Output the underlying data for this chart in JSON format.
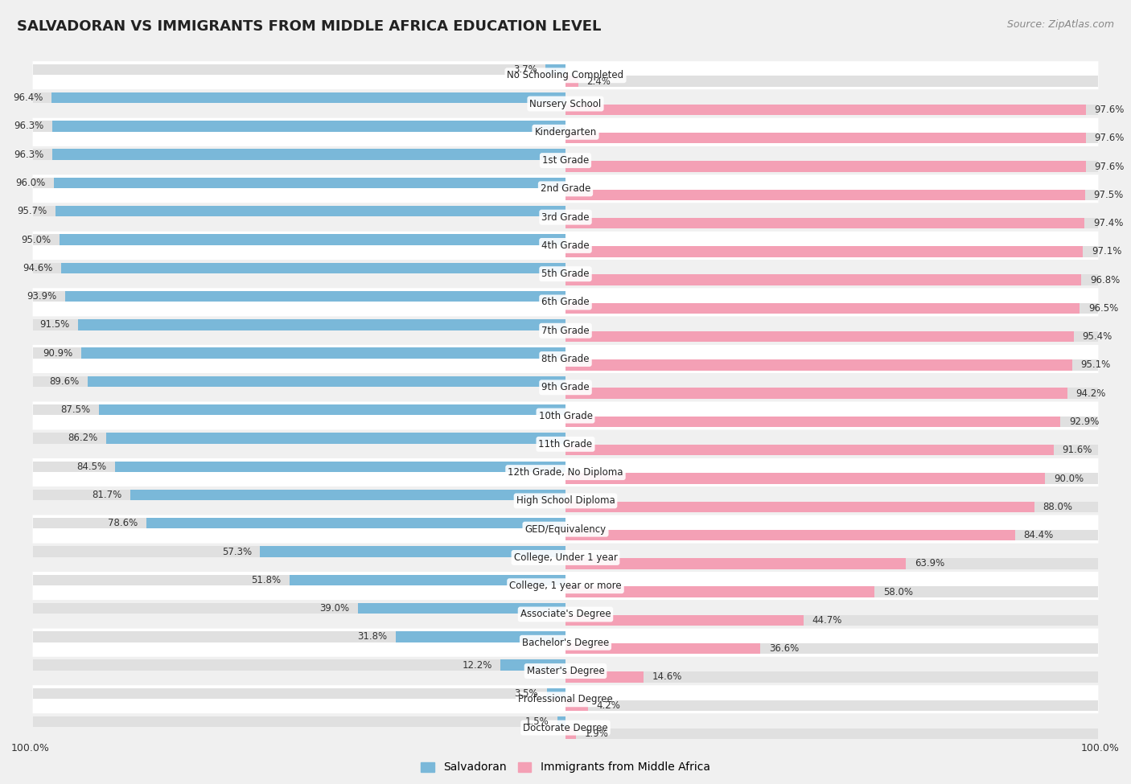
{
  "title": "SALVADORAN VS IMMIGRANTS FROM MIDDLE AFRICA EDUCATION LEVEL",
  "source": "Source: ZipAtlas.com",
  "categories": [
    "No Schooling Completed",
    "Nursery School",
    "Kindergarten",
    "1st Grade",
    "2nd Grade",
    "3rd Grade",
    "4th Grade",
    "5th Grade",
    "6th Grade",
    "7th Grade",
    "8th Grade",
    "9th Grade",
    "10th Grade",
    "11th Grade",
    "12th Grade, No Diploma",
    "High School Diploma",
    "GED/Equivalency",
    "College, Under 1 year",
    "College, 1 year or more",
    "Associate's Degree",
    "Bachelor's Degree",
    "Master's Degree",
    "Professional Degree",
    "Doctorate Degree"
  ],
  "salvadoran": [
    3.7,
    96.4,
    96.3,
    96.3,
    96.0,
    95.7,
    95.0,
    94.6,
    93.9,
    91.5,
    90.9,
    89.6,
    87.5,
    86.2,
    84.5,
    81.7,
    78.6,
    57.3,
    51.8,
    39.0,
    31.8,
    12.2,
    3.5,
    1.5
  ],
  "middle_africa": [
    2.4,
    97.6,
    97.6,
    97.6,
    97.5,
    97.4,
    97.1,
    96.8,
    96.5,
    95.4,
    95.1,
    94.2,
    92.9,
    91.6,
    90.0,
    88.0,
    84.4,
    63.9,
    58.0,
    44.7,
    36.6,
    14.6,
    4.2,
    1.9
  ],
  "salvadoran_color": "#7ab8d9",
  "middle_africa_color": "#f4a0b5",
  "background_color": "#f0f0f0",
  "row_color_even": "#ffffff",
  "row_color_odd": "#f0f0f0",
  "bar_bg_color": "#e0e0e0",
  "legend_salvadoran": "Salvadoran",
  "legend_middle_africa": "Immigrants from Middle Africa",
  "title_fontsize": 13,
  "source_fontsize": 9,
  "label_fontsize": 8.5,
  "value_fontsize": 8.5
}
